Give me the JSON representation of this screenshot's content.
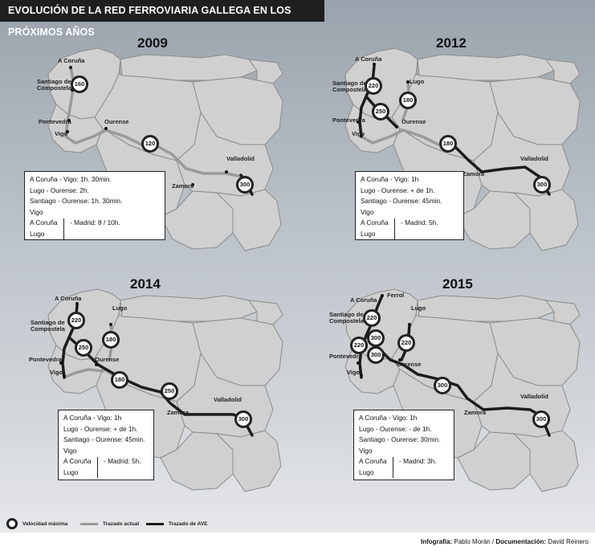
{
  "title": "EVOLUCIÓN DE LA RED FERROVIARIA GALLEGA EN LOS PRÓXIMOS AÑOS",
  "panels": [
    {
      "year": "2009",
      "cities": {
        "acoruna": "A Coruña",
        "santiago": "Santiago de Compostela",
        "pontevedra": "Pontevedra",
        "vigo": "Vigo",
        "ourense": "Ourense",
        "valladolid": "Valladolid",
        "zamora": "Zamora"
      },
      "speeds": [
        "160",
        "120",
        "300"
      ],
      "box": {
        "line1": "A Coruña - Vigo: 1h. 30min.",
        "line2": "Lugo - Ourense: 2h.",
        "line3": "Santiago - Ourense:  1h. 30min.",
        "g1": "Vigo",
        "g2": "A Coruña",
        "g3": "Lugo",
        "madrid": "- Madrid: 8 / 10h."
      }
    },
    {
      "year": "2012",
      "cities": {
        "acoruna": "A Coruña",
        "santiago": "Santiago de Compostela",
        "pontevedra": "Pontevedra",
        "vigo": "Vigo",
        "ourense": "Ourense",
        "lugo": "Lugo",
        "valladolid": "Valladolid",
        "zamora": "Zamora"
      },
      "speeds": [
        "220",
        "180",
        "250",
        "180",
        "300"
      ],
      "box": {
        "line1": "A Coruña - Vigo: 1h",
        "line2": "Lugo - Ourense: + de 1h.",
        "line3": "Santiago - Ourense:  45min.",
        "g1": "Vigo",
        "g2": "A Coruña",
        "g3": "Lugo",
        "madrid": "- Madrid: 5h."
      }
    },
    {
      "year": "2014",
      "cities": {
        "acoruna": "A Coruña",
        "santiago": "Santiago de Compostela",
        "pontevedra": "Pontevedra",
        "vigo": "Vigo",
        "ourense": "Ourense",
        "lugo": "Lugo",
        "valladolid": "Valladolid",
        "zamora": "Zamora"
      },
      "speeds": [
        "220",
        "250",
        "180",
        "180",
        "250",
        "300"
      ],
      "box": {
        "line1": "A Coruña - Vigo: 1h",
        "line2": "Lugo - Ourense: + de 1h.",
        "line3": "Santiago - Ourense:  45min.",
        "g1": "Vigo",
        "g2": "A Coruña",
        "g3": "Lugo",
        "madrid": "- Madrid: 5h."
      }
    },
    {
      "year": "2015",
      "cities": {
        "acoruna": "A Coruña",
        "ferrol": "Ferrol",
        "santiago": "Santiago de Compostela",
        "pontevedra": "Pontevedra",
        "vigo": "Vigo",
        "ourense": "Ourense",
        "lugo": "Lugo",
        "valladolid": "Valladolid",
        "zamora": "Zamora"
      },
      "speeds": [
        "220",
        "220",
        "300",
        "300",
        "220",
        "300",
        "300"
      ],
      "box": {
        "line1": "A Coruña - Vigo: 1h",
        "line2": "Lugo - Ourense: - de 1h.",
        "line3": "Santiago - Ourense:  30min.",
        "g1": "Vigo",
        "g2": "A Coruña",
        "g3": "Lugo",
        "madrid": "- Madrid: 3h."
      }
    }
  ],
  "legend": {
    "speed": "Velocidad máxima",
    "current": "Trazado actual",
    "ave": "Trazado de AVE"
  },
  "credit": {
    "infografia_label": "Infografía:",
    "infografia": "Pablo Morán",
    "doc_label": "Documentación:",
    "doc": "David Reinero"
  },
  "colors": {
    "region_fill": "#d0d0d0",
    "region_stroke": "#8c8c8c",
    "current_track": "#9a9a9a",
    "ave_track": "#1c1c1c"
  }
}
